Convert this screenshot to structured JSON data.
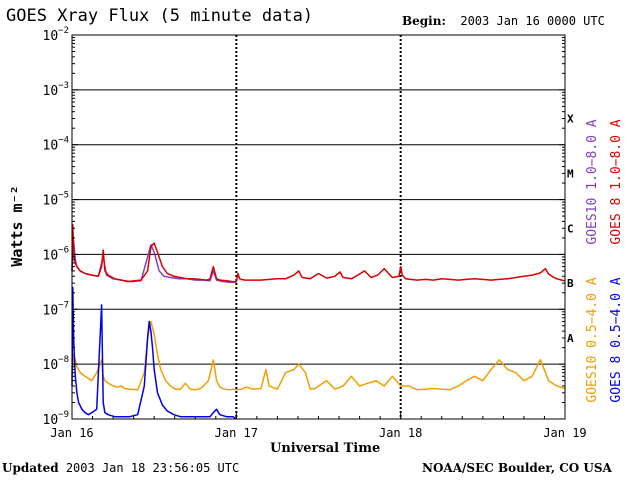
{
  "title": "GOES Xray Flux (5 minute data)",
  "begin_label": "Begin:",
  "begin_value": "2003 Jan 16 0000 UTC",
  "updated_label": "Updated",
  "updated_value": "2003 Jan 18 23:56:05 UTC",
  "credit": "NOAA/SEC Boulder, CO USA",
  "chart_data": {
    "type": "line",
    "title": "GOES Xray Flux (5 minute data)",
    "xlabel": "Universal Time",
    "ylabel": "Watts m⁻²",
    "ylim": [
      1e-09,
      0.01
    ],
    "yscale": "log",
    "grid": true,
    "y_ticks": [
      {
        "mant": "10",
        "exp": "−2",
        "value": 0.01
      },
      {
        "mant": "10",
        "exp": "−3",
        "value": 0.001
      },
      {
        "mant": "10",
        "exp": "−4",
        "value": 0.0001
      },
      {
        "mant": "10",
        "exp": "−5",
        "value": 1e-05
      },
      {
        "mant": "10",
        "exp": "−6",
        "value": 1e-06
      },
      {
        "mant": "10",
        "exp": "−7",
        "value": 1e-07
      },
      {
        "mant": "10",
        "exp": "−8",
        "value": 1e-08
      },
      {
        "mant": "10",
        "exp": "−9",
        "value": 1e-09
      }
    ],
    "x_ticks": [
      {
        "label": "Jan 16",
        "day": 0
      },
      {
        "label": "Jan 17",
        "day": 1
      },
      {
        "label": "Jan 18",
        "day": 2
      },
      {
        "label": "Jan 19",
        "day": 3
      }
    ],
    "flare_classes": [
      {
        "label": "X",
        "value": 0.0003
      },
      {
        "label": "M",
        "value": 3e-05
      },
      {
        "label": "C",
        "value": 3e-06
      },
      {
        "label": "B",
        "value": 3e-07
      },
      {
        "label": "A",
        "value": 3e-08
      }
    ],
    "legend_placement": "right",
    "series": [
      {
        "key": "g10_long",
        "name": "GOES10 1.0−8.0 A",
        "color": "#8040c0",
        "x": [
          0.0,
          0.01,
          0.02,
          0.03,
          0.05,
          0.08,
          0.12,
          0.16,
          0.19,
          0.21,
          0.25,
          0.3,
          0.36,
          0.42,
          0.46,
          0.48,
          0.5,
          0.53,
          0.56,
          0.6,
          0.65,
          0.7,
          0.75,
          0.8,
          0.84,
          0.86,
          0.88,
          0.92,
          0.96,
          1.0
        ],
        "y": [
          5e-07,
          1.8e-06,
          8e-07,
          6e-07,
          5e-07,
          4.5e-07,
          4.2e-07,
          4e-07,
          9e-07,
          4.2e-07,
          3.6e-07,
          3.4e-07,
          3.2e-07,
          3.3e-07,
          9e-07,
          1.5e-06,
          1.1e-06,
          5e-07,
          4e-07,
          3.8e-07,
          3.6e-07,
          3.6e-07,
          3.4e-07,
          3.4e-07,
          3.3e-07,
          5e-07,
          3.4e-07,
          3.2e-07,
          3.1e-07,
          3.1e-07
        ]
      },
      {
        "key": "g8_long",
        "name": "GOES 8 1.0−8.0 A",
        "color": "#dd0000",
        "x": [
          0.0,
          0.005,
          0.01,
          0.015,
          0.02,
          0.03,
          0.05,
          0.08,
          0.12,
          0.16,
          0.18,
          0.19,
          0.2,
          0.22,
          0.26,
          0.3,
          0.34,
          0.38,
          0.42,
          0.46,
          0.48,
          0.5,
          0.52,
          0.55,
          0.58,
          0.62,
          0.66,
          0.7,
          0.74,
          0.78,
          0.82,
          0.84,
          0.86,
          0.88,
          0.9,
          0.94,
          0.98,
          1.0,
          1.01,
          1.02,
          1.05,
          1.1,
          1.15,
          1.2,
          1.25,
          1.3,
          1.35,
          1.38,
          1.4,
          1.45,
          1.5,
          1.55,
          1.6,
          1.63,
          1.65,
          1.7,
          1.74,
          1.78,
          1.82,
          1.86,
          1.9,
          1.95,
          1.99,
          2.0,
          2.01,
          2.03,
          2.06,
          2.1,
          2.15,
          2.2,
          2.25,
          2.3,
          2.35,
          2.4,
          2.45,
          2.5,
          2.55,
          2.6,
          2.65,
          2.7,
          2.75,
          2.8,
          2.85,
          2.88,
          2.9,
          2.92,
          2.95,
          2.98,
          3.0
        ],
        "y": [
          5e-07,
          3.5e-06,
          1.2e-06,
          8e-07,
          7e-07,
          6e-07,
          5e-07,
          4.5e-07,
          4.2e-07,
          4e-07,
          6e-07,
          1.2e-06,
          5e-07,
          4.2e-07,
          3.6e-07,
          3.4e-07,
          3.2e-07,
          3.3e-07,
          3.4e-07,
          5e-07,
          1.4e-06,
          1.6e-06,
          1.1e-06,
          6e-07,
          4.5e-07,
          4e-07,
          3.8e-07,
          3.6e-07,
          3.6e-07,
          3.5e-07,
          3.4e-07,
          3.6e-07,
          6e-07,
          3.6e-07,
          3.4e-07,
          3.3e-07,
          3.2e-07,
          3.2e-07,
          4.5e-07,
          3.6e-07,
          3.4e-07,
          3.4e-07,
          3.4e-07,
          3.5e-07,
          3.6e-07,
          3.6e-07,
          4.2e-07,
          5e-07,
          3.8e-07,
          3.6e-07,
          4.5e-07,
          3.7e-07,
          4e-07,
          4.8e-07,
          3.8e-07,
          3.6e-07,
          4.2e-07,
          5e-07,
          3.8e-07,
          4.2e-07,
          5.5e-07,
          3.8e-07,
          4e-07,
          6e-07,
          4.2e-07,
          3.6e-07,
          3.5e-07,
          3.4e-07,
          3.5e-07,
          3.4e-07,
          3.6e-07,
          3.5e-07,
          3.4e-07,
          3.5e-07,
          3.6e-07,
          3.5e-07,
          3.4e-07,
          3.5e-07,
          3.6e-07,
          3.8e-07,
          4e-07,
          4.2e-07,
          4.6e-07,
          5.5e-07,
          4.4e-07,
          4e-07,
          3.6e-07,
          3.4e-07,
          3.3e-07
        ]
      },
      {
        "key": "g10_short",
        "name": "GOES10 0.5−4.0 A",
        "color": "#f0a000",
        "x": [
          0.0,
          0.01,
          0.02,
          0.03,
          0.05,
          0.08,
          0.1,
          0.12,
          0.15,
          0.18,
          0.19,
          0.2,
          0.22,
          0.25,
          0.28,
          0.3,
          0.32,
          0.35,
          0.4,
          0.44,
          0.46,
          0.48,
          0.5,
          0.52,
          0.54,
          0.57,
          0.6,
          0.63,
          0.66,
          0.69,
          0.72,
          0.75,
          0.78,
          0.8,
          0.83,
          0.86,
          0.88,
          0.9,
          0.93,
          0.96,
          0.98,
          1.0,
          1.03,
          1.06,
          1.1,
          1.15,
          1.18,
          1.2,
          1.25,
          1.3,
          1.35,
          1.38,
          1.42,
          1.45,
          1.48,
          1.5,
          1.55,
          1.6,
          1.65,
          1.7,
          1.75,
          1.8,
          1.85,
          1.9,
          1.95,
          2.0,
          2.05,
          2.1,
          2.15,
          2.2,
          2.25,
          2.3,
          2.35,
          2.4,
          2.45,
          2.5,
          2.55,
          2.6,
          2.65,
          2.7,
          2.75,
          2.8,
          2.85,
          2.9,
          2.95,
          3.0
        ],
        "y": [
          6e-09,
          1.5e-08,
          1.2e-08,
          9e-09,
          7e-09,
          6e-09,
          5.5e-09,
          5e-09,
          7e-09,
          1.2e-08,
          6e-09,
          5e-09,
          4.5e-09,
          4e-09,
          3.8e-09,
          4e-09,
          3.6e-09,
          3.5e-09,
          3.4e-09,
          7e-09,
          3e-08,
          6e-08,
          3.5e-08,
          1.5e-08,
          8e-09,
          5e-09,
          4e-09,
          3.5e-09,
          3.5e-09,
          4.5e-09,
          3.5e-09,
          3.4e-09,
          3.6e-09,
          4e-09,
          5e-09,
          1.2e-08,
          5e-09,
          3.8e-09,
          3.5e-09,
          3.4e-09,
          3.5e-09,
          3.4e-09,
          3.5e-09,
          3.8e-09,
          3.5e-09,
          3.6e-09,
          8e-09,
          4e-09,
          3.5e-09,
          7e-09,
          8e-09,
          1e-08,
          7e-09,
          3.5e-09,
          3.6e-09,
          4e-09,
          5e-09,
          3.5e-09,
          4e-09,
          6e-09,
          4e-09,
          4.5e-09,
          5e-09,
          4e-09,
          6e-09,
          4e-09,
          4e-09,
          3.4e-09,
          3.5e-09,
          3.6e-09,
          3.5e-09,
          3.4e-09,
          4e-09,
          5e-09,
          6e-09,
          5e-09,
          8e-09,
          1.2e-08,
          8e-09,
          7e-09,
          5e-09,
          6e-09,
          1.2e-08,
          5e-09,
          4e-09,
          3.6e-09
        ]
      },
      {
        "key": "g8_short",
        "name": "GOES 8 0.5−4.0 A",
        "color": "#0000ee",
        "x": [
          0.0,
          0.005,
          0.01,
          0.015,
          0.02,
          0.03,
          0.04,
          0.06,
          0.08,
          0.1,
          0.12,
          0.15,
          0.18,
          0.19,
          0.2,
          0.22,
          0.26,
          0.3,
          0.35,
          0.4,
          0.44,
          0.46,
          0.47,
          0.48,
          0.49,
          0.5,
          0.52,
          0.55,
          0.58,
          0.62,
          0.66,
          0.7,
          0.75,
          0.8,
          0.84,
          0.86,
          0.88,
          0.9,
          0.94,
          0.98,
          1.0
        ],
        "y": [
          4e-09,
          2.5e-07,
          3e-08,
          1.2e-08,
          6e-09,
          3e-09,
          2e-09,
          1.5e-09,
          1.3e-09,
          1.2e-09,
          1.3e-09,
          1.5e-09,
          1.2e-07,
          2e-09,
          1.3e-09,
          1.2e-09,
          1.1e-09,
          1.1e-09,
          1.1e-09,
          1.2e-09,
          4e-09,
          3e-08,
          6e-08,
          4e-08,
          2e-08,
          8e-09,
          3e-09,
          1.8e-09,
          1.4e-09,
          1.2e-09,
          1.1e-09,
          1.1e-09,
          1.1e-09,
          1.1e-09,
          1.1e-09,
          1.3e-09,
          1.5e-09,
          1.2e-09,
          1.1e-09,
          1.1e-09,
          1e-09
        ]
      }
    ]
  }
}
